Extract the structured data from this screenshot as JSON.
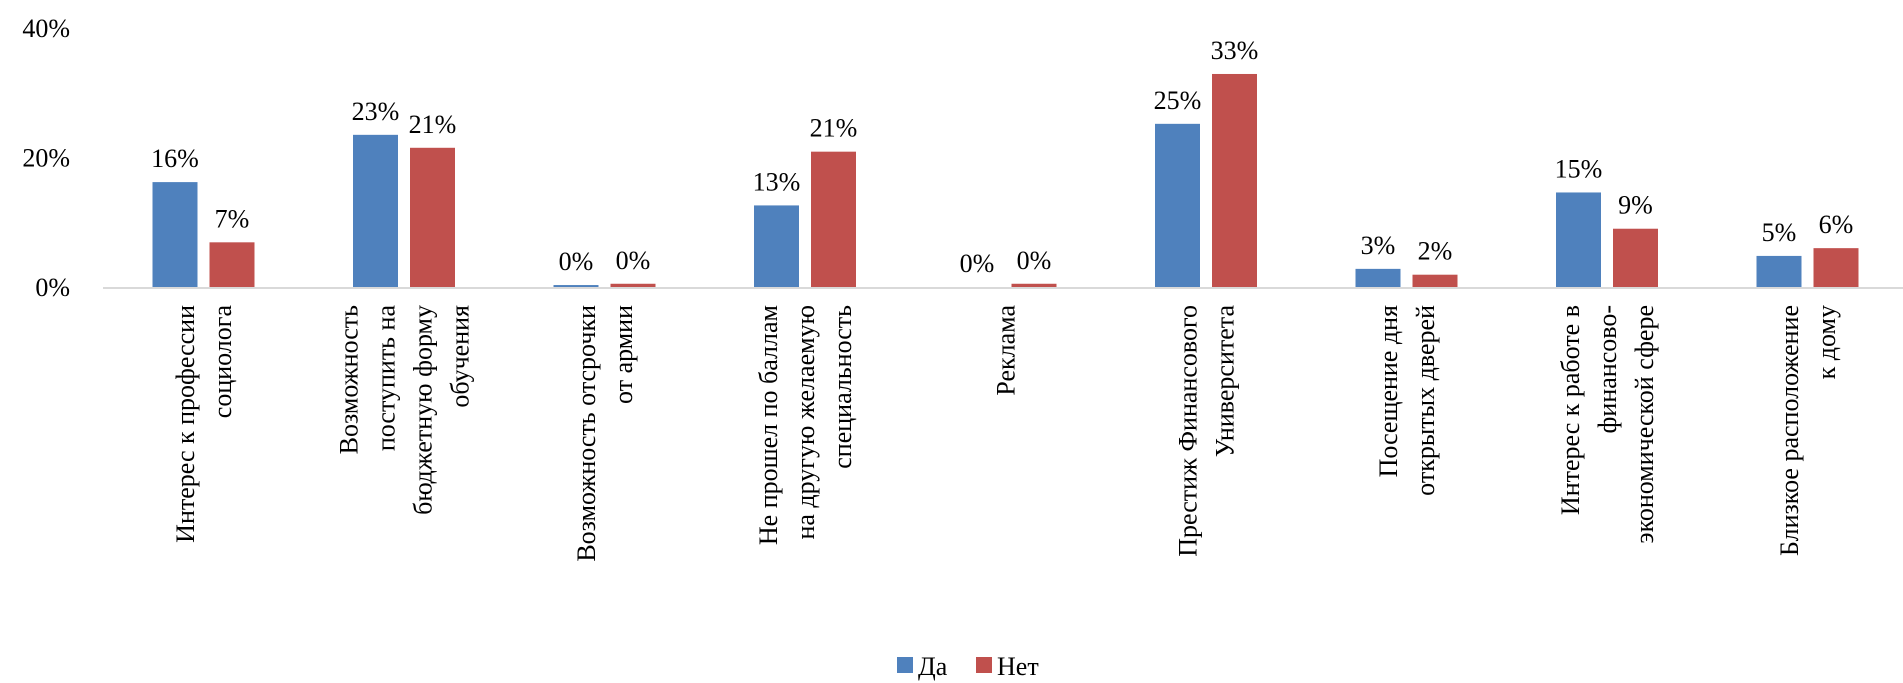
{
  "chart_data": {
    "type": "bar",
    "title": "",
    "xlabel": "",
    "ylabel": "",
    "ylim": [
      0,
      40
    ],
    "yticks": [
      "0%",
      "20%",
      "40%"
    ],
    "grid": false,
    "legend_position": "bottom",
    "categories": [
      [
        "Интерес к профессии",
        "социолога"
      ],
      [
        "Возможность",
        "поступить на",
        "бюджетную форму",
        "обучения"
      ],
      [
        "Возможность отсрочки",
        "от армии"
      ],
      [
        "Не прошел по баллам",
        "на другую желаемую",
        "специальность"
      ],
      [
        "Реклама"
      ],
      [
        "Престиж Финансового",
        "Университета"
      ],
      [
        "Посещение дня",
        "открытых дверей"
      ],
      [
        "Интерес к работе в",
        "финансово-",
        "экономической сфере"
      ],
      [
        "Близкое расположение",
        "к дому"
      ]
    ],
    "series": [
      {
        "name": "Да",
        "color": "#4F81BD",
        "values": [
          16.2,
          23.5,
          0.3,
          12.6,
          0.0,
          25.2,
          2.8,
          14.6,
          4.8
        ],
        "labels": [
          "16%",
          "23%",
          "0%",
          "13%",
          "0%",
          "25%",
          "3%",
          "15%",
          "5%"
        ]
      },
      {
        "name": "Нет",
        "color": "#C0504D",
        "values": [
          6.9,
          21.5,
          0.5,
          20.9,
          0.5,
          32.9,
          1.9,
          9.0,
          6.0
        ],
        "labels": [
          "7%",
          "21%",
          "0%",
          "21%",
          "0%",
          "33%",
          "2%",
          "9%",
          "6%"
        ]
      }
    ]
  }
}
